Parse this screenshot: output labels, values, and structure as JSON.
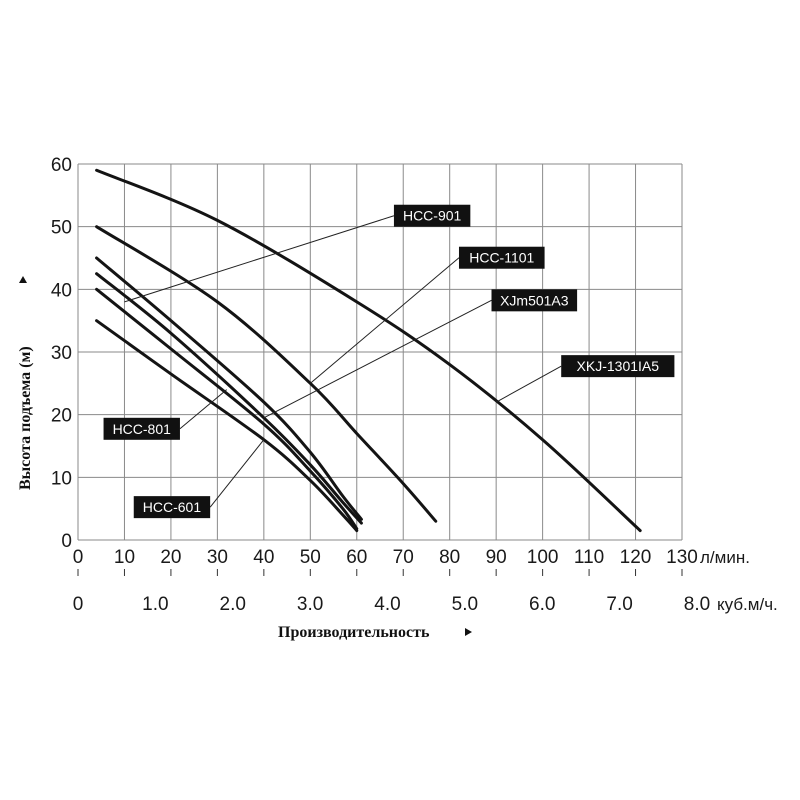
{
  "chart_data": {
    "type": "line",
    "ylabel": "Высота подъема (м)",
    "xlabel": "Производительность",
    "x_unit_primary": "л/мин.",
    "x_unit_secondary": "куб.м/ч.",
    "xlim": [
      0,
      130
    ],
    "ylim": [
      0,
      60
    ],
    "x_ticks": [
      0,
      10,
      20,
      30,
      40,
      50,
      60,
      70,
      80,
      90,
      100,
      110,
      120,
      130
    ],
    "y_ticks": [
      0,
      10,
      20,
      30,
      40,
      50,
      60
    ],
    "x2_ticks": [
      "0",
      "1.0",
      "2.0",
      "3.0",
      "4.0",
      "5.0",
      "6.0",
      "7.0",
      "8.0"
    ],
    "grid": true,
    "series": [
      {
        "name": "XKJ-1301IA5",
        "x": [
          4,
          30,
          60,
          80,
          100,
          121
        ],
        "y": [
          59,
          51,
          38,
          28,
          16,
          1.5
        ],
        "label_anchor": [
          90,
          22
        ],
        "label_pos": [
          104,
          29.5
        ]
      },
      {
        "name": "HCC-1101",
        "x": [
          4,
          30,
          50,
          60,
          70,
          77
        ],
        "y": [
          50,
          38,
          25,
          17,
          9,
          3
        ],
        "label_anchor": [
          50,
          25
        ],
        "label_pos": [
          82,
          46.8
        ]
      },
      {
        "name": "HCC-901",
        "x": [
          4,
          20,
          40,
          50,
          57,
          61
        ],
        "y": [
          45,
          35,
          22,
          14,
          7,
          3.3
        ],
        "label_anchor": [
          10,
          38
        ],
        "label_pos": [
          68,
          53.5
        ]
      },
      {
        "name": "XJm501A3",
        "x": [
          4,
          20,
          40,
          50,
          57,
          61
        ],
        "y": [
          42.5,
          33,
          19.5,
          12,
          6,
          2.7
        ],
        "label_anchor": [
          40,
          19.5
        ],
        "label_pos": [
          89,
          40
        ]
      },
      {
        "name": "HCC-801",
        "x": [
          4,
          20,
          40,
          50,
          57,
          60
        ],
        "y": [
          40,
          30.5,
          18.5,
          11,
          5,
          1.8
        ],
        "label_anchor": [
          32,
          24
        ],
        "label_pos": [
          5.5,
          19.5
        ]
      },
      {
        "name": "HCC-601",
        "x": [
          4,
          20,
          40,
          50,
          57,
          60
        ],
        "y": [
          35,
          26.5,
          16,
          9.5,
          4,
          1.5
        ],
        "label_anchor": [
          40,
          16
        ],
        "label_pos": [
          12,
          7
        ]
      }
    ]
  }
}
